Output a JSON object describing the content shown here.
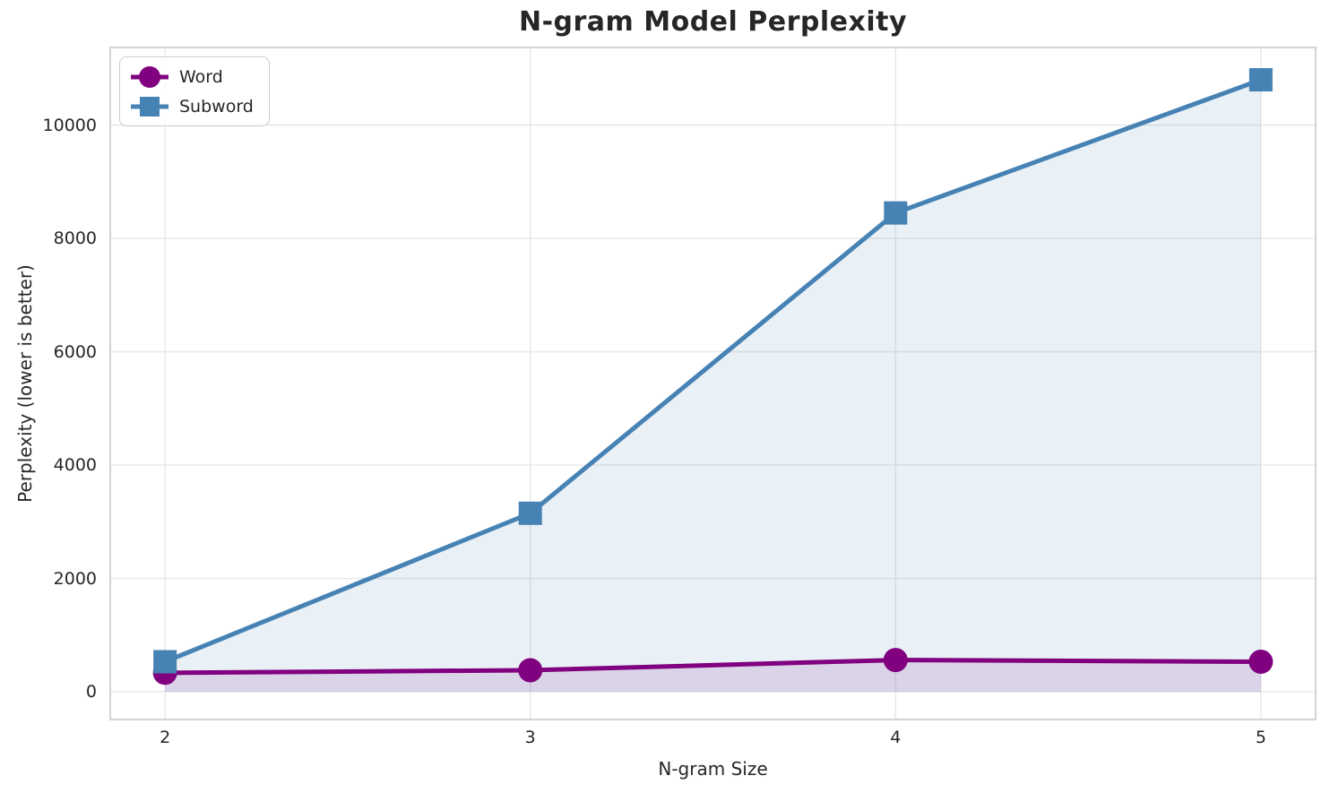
{
  "chart_data": {
    "type": "line",
    "title": "N-gram Model Perplexity",
    "xlabel": "N-gram Size",
    "ylabel": "Perplexity (lower is better)",
    "x": [
      2,
      3,
      4,
      5
    ],
    "series": [
      {
        "name": "Word",
        "marker": "circle",
        "color": "#800080",
        "fill_color": "rgba(128,0,128,0.13)",
        "values": [
          335,
          380,
          560,
          530
        ]
      },
      {
        "name": "Subword",
        "marker": "square",
        "color": "#4682B4",
        "fill_color": "rgba(70,130,180,0.12)",
        "values": [
          530,
          3150,
          8450,
          10800
        ]
      }
    ],
    "xticks": [
      2,
      3,
      4,
      5
    ],
    "yticks": [
      0,
      2000,
      4000,
      6000,
      8000,
      10000
    ],
    "xlim": [
      1.85,
      5.15
    ],
    "ylim": [
      -490,
      11370
    ],
    "grid": true,
    "fill_to_zero": true,
    "legend_position": "upper left"
  },
  "colors": {
    "background": "#FFFFFF",
    "grid": "#E7E7E7",
    "spine": "#D4D4D4",
    "text": "#262626",
    "word_accent": "#800080",
    "subword_accent": "#4682B4"
  }
}
